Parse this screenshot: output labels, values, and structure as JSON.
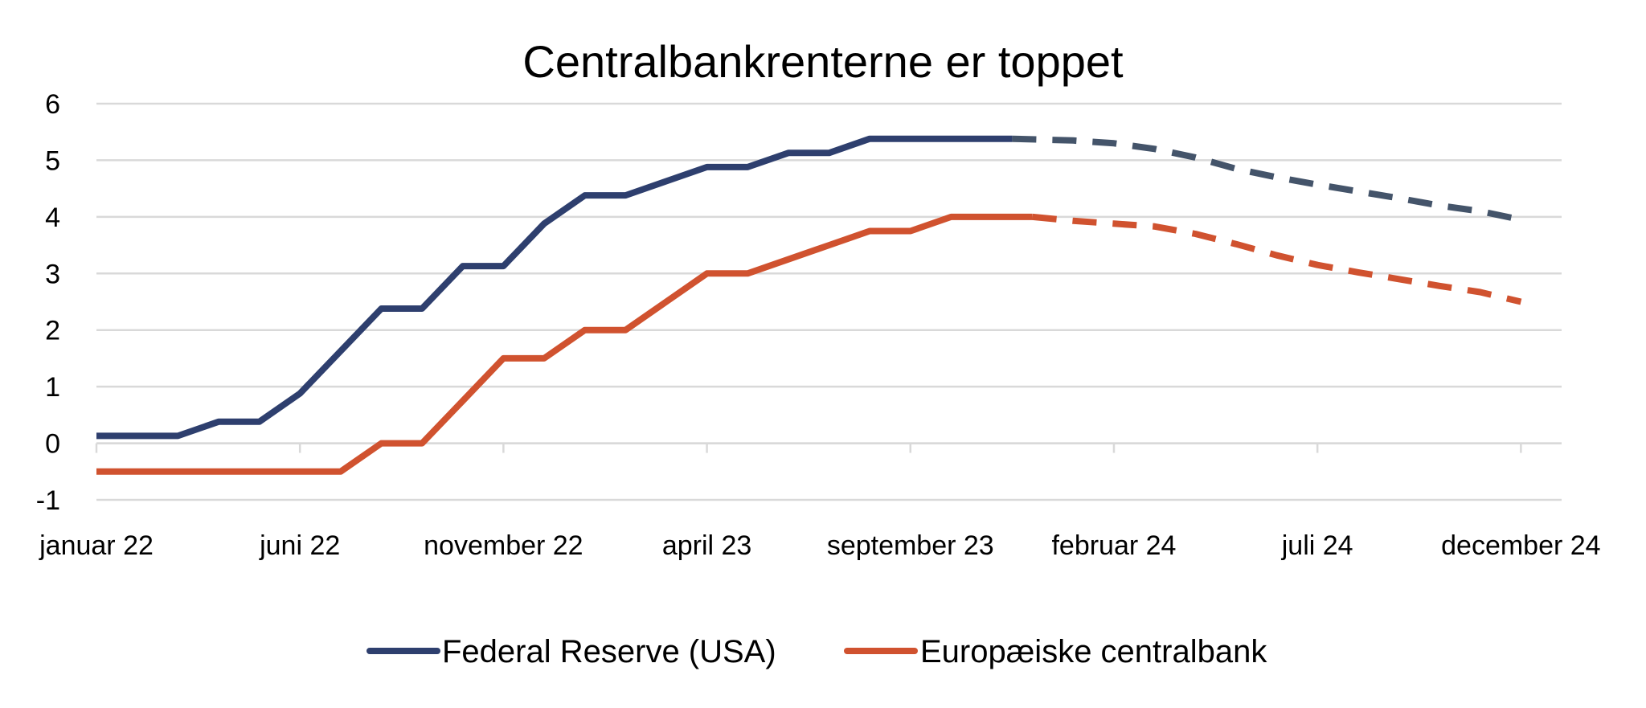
{
  "chart_data": {
    "type": "line",
    "title": "Centralbankrenterne er toppet",
    "xlabel": "",
    "ylabel": "",
    "ylim": [
      -1,
      6
    ],
    "yticks": [
      -1,
      0,
      1,
      2,
      3,
      4,
      5,
      6
    ],
    "x_labels": [
      {
        "month_index": 0,
        "label": "januar 22"
      },
      {
        "month_index": 5,
        "label": "juni 22"
      },
      {
        "month_index": 10,
        "label": "november 22"
      },
      {
        "month_index": 15,
        "label": "april 23"
      },
      {
        "month_index": 20,
        "label": "september 23"
      },
      {
        "month_index": 25,
        "label": "februar 24"
      },
      {
        "month_index": 30,
        "label": "juli 24"
      },
      {
        "month_index": 35,
        "label": "december 24"
      }
    ],
    "grid": true,
    "legend_position": "bottom",
    "series": [
      {
        "name": "Federal Reserve (USA)",
        "color": "#2e3f6e",
        "forecast_color": "#44546a",
        "actual": [
          [
            0,
            0.13
          ],
          [
            2,
            0.13
          ],
          [
            3,
            0.38
          ],
          [
            4,
            0.38
          ],
          [
            5,
            0.88
          ],
          [
            7,
            2.38
          ],
          [
            8,
            2.38
          ],
          [
            9,
            3.13
          ],
          [
            10,
            3.13
          ],
          [
            11,
            3.88
          ],
          [
            12,
            4.38
          ],
          [
            13,
            4.38
          ],
          [
            14,
            4.63
          ],
          [
            15,
            4.88
          ],
          [
            16,
            4.88
          ],
          [
            17,
            5.13
          ],
          [
            18,
            5.13
          ],
          [
            19,
            5.38
          ],
          [
            22.5,
            5.38
          ]
        ],
        "forecast": [
          [
            22.5,
            5.38
          ],
          [
            24,
            5.35
          ],
          [
            25,
            5.3
          ],
          [
            26,
            5.2
          ],
          [
            27,
            5.05
          ],
          [
            28,
            4.85
          ],
          [
            29,
            4.7
          ],
          [
            30,
            4.57
          ],
          [
            31,
            4.45
          ],
          [
            32,
            4.33
          ],
          [
            33,
            4.2
          ],
          [
            34,
            4.1
          ],
          [
            35,
            3.95
          ]
        ]
      },
      {
        "name": "Europæiske centralbank",
        "color": "#d0522f",
        "forecast_color": "#d0522f",
        "actual": [
          [
            0,
            -0.5
          ],
          [
            6,
            -0.5
          ],
          [
            7,
            0
          ],
          [
            8,
            0
          ],
          [
            9,
            0.75
          ],
          [
            10,
            1.5
          ],
          [
            11,
            1.5
          ],
          [
            12,
            2
          ],
          [
            13,
            2
          ],
          [
            14,
            2.5
          ],
          [
            15,
            3
          ],
          [
            16,
            3
          ],
          [
            17,
            3.25
          ],
          [
            18,
            3.5
          ],
          [
            19,
            3.75
          ],
          [
            20,
            3.75
          ],
          [
            21,
            4
          ],
          [
            23,
            4
          ]
        ],
        "forecast": [
          [
            23,
            4
          ],
          [
            24,
            3.93
          ],
          [
            25,
            3.88
          ],
          [
            26,
            3.83
          ],
          [
            27,
            3.7
          ],
          [
            28,
            3.52
          ],
          [
            29,
            3.32
          ],
          [
            30,
            3.15
          ],
          [
            31,
            3.02
          ],
          [
            32,
            2.9
          ],
          [
            33,
            2.78
          ],
          [
            34,
            2.67
          ],
          [
            35,
            2.5
          ]
        ]
      }
    ]
  }
}
